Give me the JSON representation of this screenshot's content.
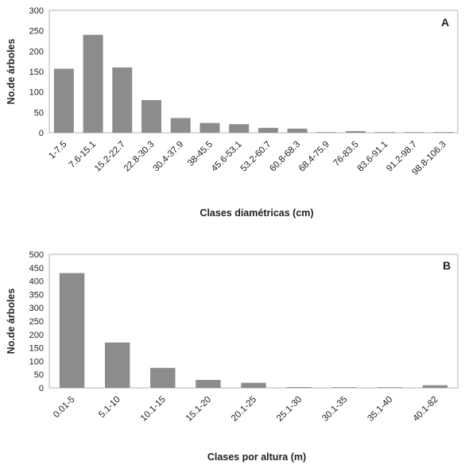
{
  "chart_data": [
    {
      "type": "bar",
      "panel_label": "A",
      "xlabel": "Clases diamétricas (cm)",
      "ylabel": "No.de árboles",
      "ylim": [
        0,
        300
      ],
      "yticks": [
        0,
        50,
        100,
        150,
        200,
        250,
        300
      ],
      "grid": false,
      "bar_color": "#8c8c8c",
      "categories": [
        "1-7.5",
        "7.6-15.1",
        "15.2-22.7",
        "22.8-30.3",
        "30.4-37.9",
        "38-45.5",
        "45.6-53.1",
        "53.2-60.7",
        "60.8-68.3",
        "68.4-75.9",
        "76-83.5",
        "83.6-91.1",
        "91.2-98.7",
        "98.8-106.3"
      ],
      "values": [
        157,
        240,
        160,
        80,
        36,
        24,
        21,
        12,
        10,
        1,
        4,
        1,
        0,
        0
      ]
    },
    {
      "type": "bar",
      "panel_label": "B",
      "xlabel": "Clases por altura (m)",
      "ylabel": "No.de árboles",
      "ylim": [
        0,
        500
      ],
      "yticks": [
        0,
        50,
        100,
        150,
        200,
        250,
        300,
        350,
        400,
        450,
        500
      ],
      "grid": false,
      "bar_color": "#8c8c8c",
      "categories": [
        "0.01-5",
        "5.1-10",
        "10.1-15",
        "15.1-20",
        "20.1-25",
        "25.1-30",
        "30.1-35",
        "35.1-40",
        "40.1-82"
      ],
      "values": [
        430,
        170,
        75,
        30,
        19,
        3,
        0,
        2,
        10
      ]
    }
  ]
}
